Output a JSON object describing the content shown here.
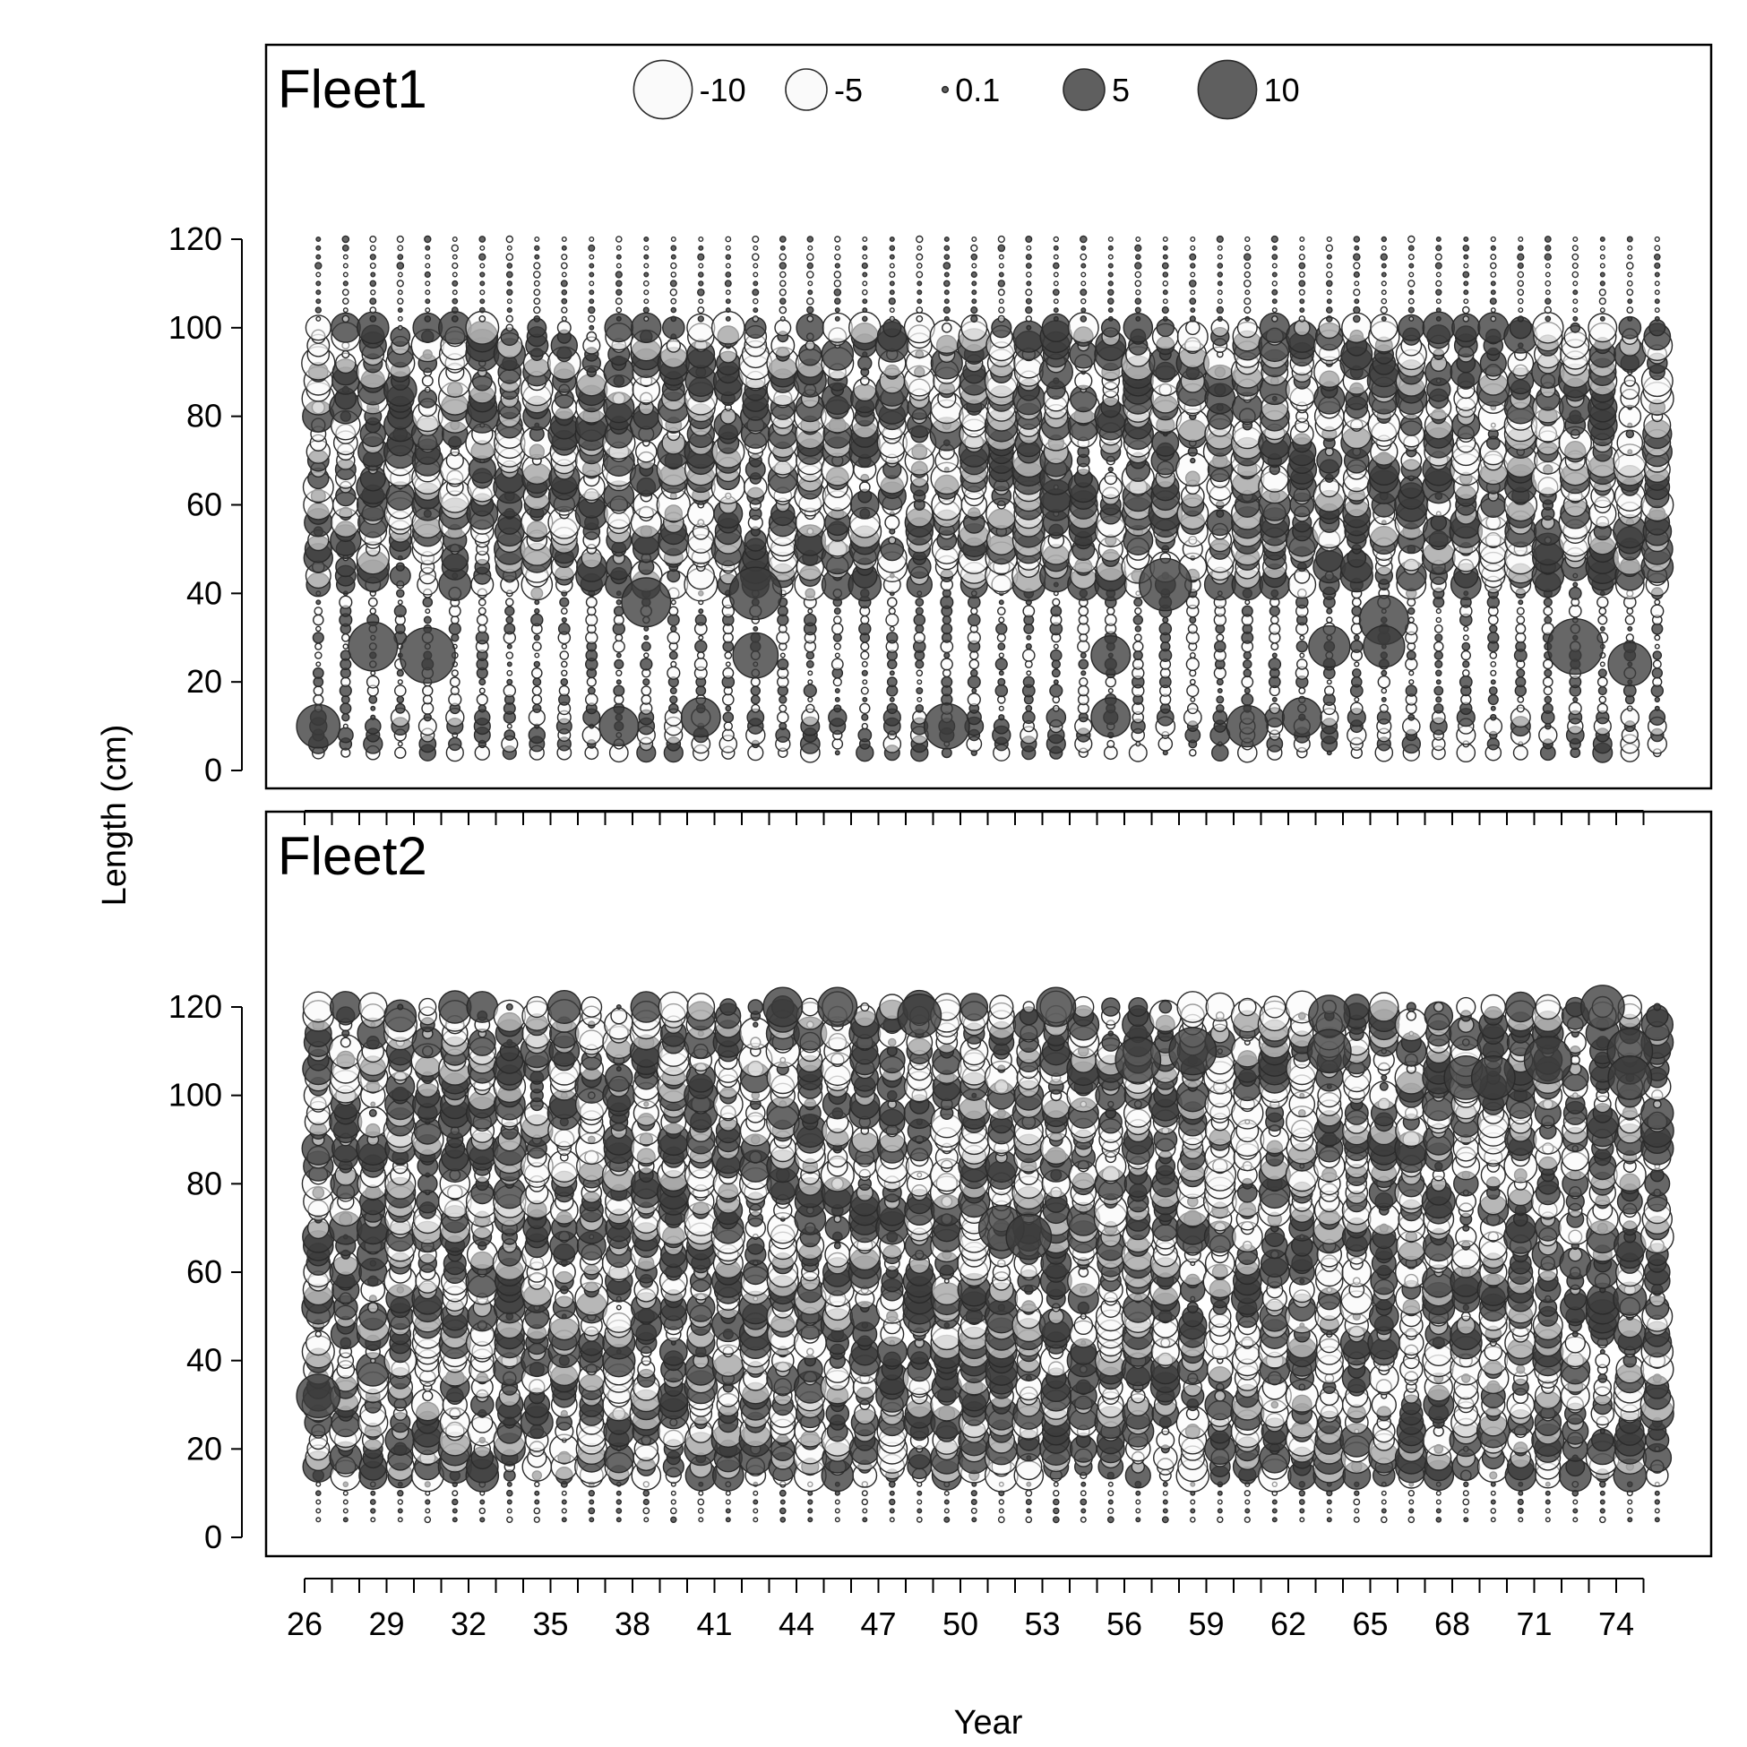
{
  "chart_data": {
    "type": "scatter",
    "subtype": "bubble",
    "xlabel": "Year",
    "ylabel": "Length (cm)",
    "x_ticks": [
      26,
      29,
      32,
      35,
      38,
      41,
      44,
      47,
      50,
      53,
      56,
      59,
      62,
      65,
      68,
      71,
      74
    ],
    "x_minor_step": 1,
    "y_ticks": [
      0,
      20,
      40,
      60,
      80,
      100,
      120
    ],
    "xlim": [
      24.5,
      76.5
    ],
    "ylim": [
      -4,
      165
    ],
    "colors": {
      "positive_fill": "#3c3c3c",
      "negative_fill": "#fafafa",
      "stroke": "#2a2a2a"
    },
    "legend": {
      "values": [
        -10,
        -5,
        0.1,
        5,
        10
      ],
      "labels": [
        "-10",
        "-5",
        "0.1",
        "5",
        "10"
      ],
      "panel": "Fleet1",
      "placement": "top"
    },
    "panels": [
      {
        "title": "Fleet1",
        "years": [
          26,
          76
        ],
        "length_bins": [
          4,
          120,
          2
        ],
        "prominent_residuals": [
          {
            "year": 26.5,
            "length": 10,
            "residual": 5.5
          },
          {
            "year": 28.5,
            "length": 28,
            "residual": 7
          },
          {
            "year": 30.5,
            "length": 26,
            "residual": 9
          },
          {
            "year": 37.5,
            "length": 10,
            "residual": 4.5
          },
          {
            "year": 38.5,
            "length": 38,
            "residual": 7
          },
          {
            "year": 40.5,
            "length": 12,
            "residual": 4.5
          },
          {
            "year": 42.5,
            "length": 40,
            "residual": 8
          },
          {
            "year": 42.5,
            "length": 26,
            "residual": 6
          },
          {
            "year": 49.5,
            "length": 10,
            "residual": 6
          },
          {
            "year": 55.5,
            "length": 12,
            "residual": 4.5
          },
          {
            "year": 55.5,
            "length": 26,
            "residual": 4.5
          },
          {
            "year": 57.5,
            "length": 42,
            "residual": 8
          },
          {
            "year": 60.5,
            "length": 10,
            "residual": 5
          },
          {
            "year": 62.5,
            "length": 12,
            "residual": 4.5
          },
          {
            "year": 63.5,
            "length": 28,
            "residual": 5
          },
          {
            "year": 65.5,
            "length": 34,
            "residual": 7
          },
          {
            "year": 65.5,
            "length": 28,
            "residual": 5
          },
          {
            "year": 72.5,
            "length": 28,
            "residual": 9
          },
          {
            "year": 74.5,
            "length": 24,
            "residual": 5.5
          }
        ]
      },
      {
        "title": "Fleet2",
        "years": [
          26,
          76
        ],
        "length_bins": [
          4,
          120,
          2
        ],
        "prominent_residuals": [
          {
            "year": 26.5,
            "length": 32,
            "residual": 5.5
          },
          {
            "year": 43.5,
            "length": 120,
            "residual": 4.5
          },
          {
            "year": 45.5,
            "length": 120,
            "residual": 4.5
          },
          {
            "year": 48.5,
            "length": 118,
            "residual": 5.5
          },
          {
            "year": 53.5,
            "length": 120,
            "residual": 4.5
          },
          {
            "year": 56.5,
            "length": 108,
            "residual": 6
          },
          {
            "year": 58.5,
            "length": 110,
            "residual": 6.5
          },
          {
            "year": 63.5,
            "length": 118,
            "residual": 5
          },
          {
            "year": 63.5,
            "length": 110,
            "residual": 5.5
          },
          {
            "year": 68.5,
            "length": 104,
            "residual": 5.5
          },
          {
            "year": 69.5,
            "length": 104,
            "residual": 5.5
          },
          {
            "year": 71.5,
            "length": 108,
            "residual": 6.5
          },
          {
            "year": 73.5,
            "length": 120,
            "residual": 5.5
          },
          {
            "year": 74.5,
            "length": 110,
            "residual": 6
          },
          {
            "year": 74.5,
            "length": 104,
            "residual": 5.5
          },
          {
            "year": 51.5,
            "length": 70,
            "residual": 6
          },
          {
            "year": 52.5,
            "length": 68,
            "residual": 6
          }
        ]
      }
    ]
  }
}
